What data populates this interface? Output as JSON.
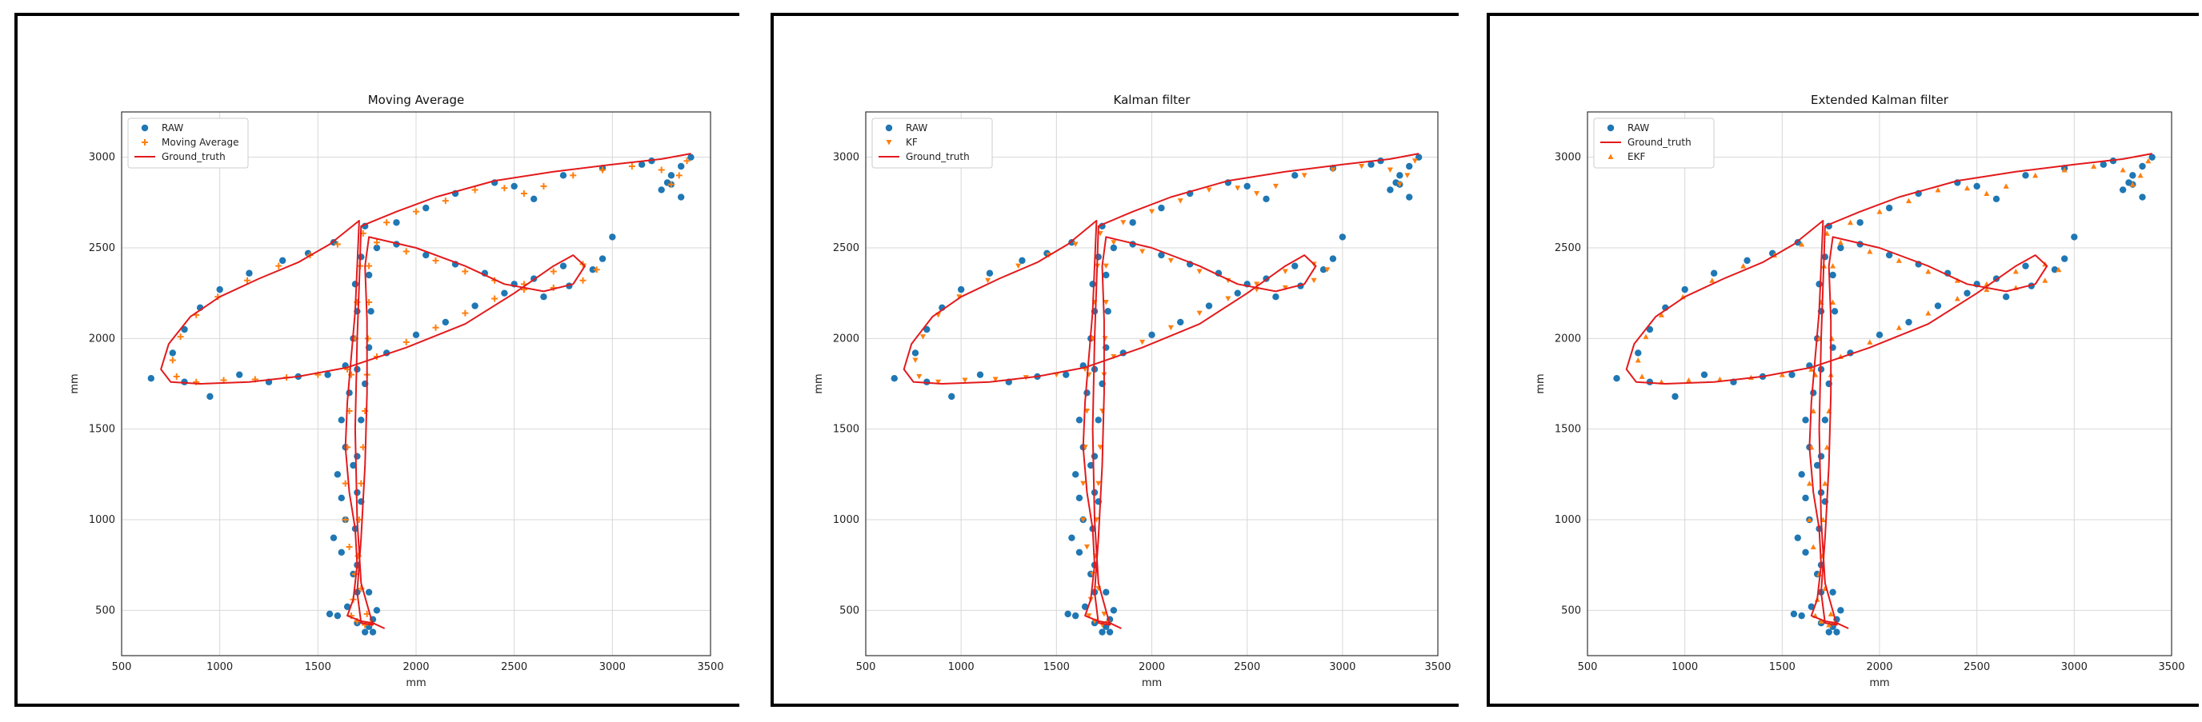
{
  "colors": {
    "raw": "#1f77b4",
    "filtered": "#ff7f0e",
    "truth": "#e31a1c",
    "grid": "#d8d8d8"
  },
  "chart_data": [
    {
      "type": "scatter",
      "title": "Moving Average",
      "xlabel": "mm",
      "ylabel": "mm",
      "xlim": [
        500,
        3500
      ],
      "ylim": [
        250,
        3250
      ],
      "xticks": [
        500,
        1000,
        1500,
        2000,
        2500,
        3000,
        3500
      ],
      "yticks": [
        500,
        1000,
        1500,
        2000,
        2500,
        3000
      ],
      "grid": true,
      "legend_position": "top-left",
      "legend": [
        {
          "label": "RAW",
          "kind": "raw",
          "marker": "dot"
        },
        {
          "label": "Moving Average",
          "kind": "filtered",
          "marker": "plus"
        },
        {
          "label": "Ground_truth",
          "kind": "truth",
          "marker": "line"
        }
      ],
      "filtered_marker": "plus"
    },
    {
      "type": "scatter",
      "title": "Kalman filter",
      "xlabel": "mm",
      "ylabel": "mm",
      "xlim": [
        500,
        3500
      ],
      "ylim": [
        250,
        3250
      ],
      "xticks": [
        500,
        1000,
        1500,
        2000,
        2500,
        3000,
        3500
      ],
      "yticks": [
        500,
        1000,
        1500,
        2000,
        2500,
        3000
      ],
      "grid": true,
      "legend_position": "top-left",
      "legend": [
        {
          "label": "RAW",
          "kind": "raw",
          "marker": "dot"
        },
        {
          "label": "KF",
          "kind": "filtered",
          "marker": "triangle-down"
        },
        {
          "label": "Ground_truth",
          "kind": "truth",
          "marker": "line"
        }
      ],
      "filtered_marker": "triangle-down"
    },
    {
      "type": "scatter",
      "title": "Extended Kalman filter",
      "xlabel": "mm",
      "ylabel": "mm",
      "xlim": [
        500,
        3500
      ],
      "ylim": [
        250,
        3250
      ],
      "xticks": [
        500,
        1000,
        1500,
        2000,
        2500,
        3000,
        3500
      ],
      "yticks": [
        500,
        1000,
        1500,
        2000,
        2500,
        3000
      ],
      "grid": true,
      "legend_position": "top-left",
      "legend": [
        {
          "label": "RAW",
          "kind": "raw",
          "marker": "dot"
        },
        {
          "label": "Ground_truth",
          "kind": "truth",
          "marker": "line"
        },
        {
          "label": "EKF",
          "kind": "filtered",
          "marker": "triangle-up"
        }
      ],
      "filtered_marker": "triangle-up"
    }
  ],
  "trajectory": {
    "ground_truth": [
      [
        1840,
        400
      ],
      [
        1780,
        430
      ],
      [
        1720,
        440
      ],
      [
        1650,
        470
      ],
      [
        1680,
        560
      ],
      [
        1700,
        750
      ],
      [
        1690,
        950
      ],
      [
        1660,
        1150
      ],
      [
        1640,
        1400
      ],
      [
        1650,
        1650
      ],
      [
        1670,
        1900
      ],
      [
        1690,
        2150
      ],
      [
        1700,
        2400
      ],
      [
        1710,
        2650
      ],
      [
        1560,
        2520
      ],
      [
        1400,
        2420
      ],
      [
        1200,
        2330
      ],
      [
        1000,
        2230
      ],
      [
        850,
        2120
      ],
      [
        740,
        1970
      ],
      [
        700,
        1830
      ],
      [
        750,
        1760
      ],
      [
        900,
        1750
      ],
      [
        1150,
        1760
      ],
      [
        1400,
        1790
      ],
      [
        1650,
        1840
      ],
      [
        1950,
        1950
      ],
      [
        2250,
        2080
      ],
      [
        2500,
        2250
      ],
      [
        2700,
        2400
      ],
      [
        2800,
        2460
      ],
      [
        2860,
        2400
      ],
      [
        2800,
        2300
      ],
      [
        2650,
        2260
      ],
      [
        2450,
        2300
      ],
      [
        2250,
        2400
      ],
      [
        2000,
        2500
      ],
      [
        1760,
        2560
      ],
      [
        1740,
        2400
      ],
      [
        1750,
        2100
      ],
      [
        1750,
        1700
      ],
      [
        1740,
        1300
      ],
      [
        1720,
        900
      ],
      [
        1700,
        600
      ],
      [
        1720,
        430
      ],
      [
        1780,
        420
      ],
      [
        1720,
        650
      ],
      [
        1700,
        1000
      ],
      [
        1690,
        1500
      ],
      [
        1700,
        2000
      ],
      [
        1710,
        2300
      ],
      [
        1720,
        2620
      ],
      [
        1900,
        2700
      ],
      [
        2100,
        2780
      ],
      [
        2400,
        2870
      ],
      [
        2700,
        2920
      ],
      [
        3000,
        2960
      ],
      [
        3250,
        2990
      ],
      [
        3400,
        3020
      ]
    ],
    "raw": [
      [
        1780,
        450
      ],
      [
        1760,
        410
      ],
      [
        1740,
        380
      ],
      [
        1700,
        430
      ],
      [
        1600,
        470
      ],
      [
        1560,
        480
      ],
      [
        1650,
        520
      ],
      [
        1700,
        600
      ],
      [
        1680,
        700
      ],
      [
        1620,
        820
      ],
      [
        1580,
        900
      ],
      [
        1640,
        1000
      ],
      [
        1620,
        1120
      ],
      [
        1600,
        1250
      ],
      [
        1640,
        1400
      ],
      [
        1620,
        1550
      ],
      [
        1660,
        1700
      ],
      [
        1640,
        1850
      ],
      [
        1680,
        2000
      ],
      [
        1700,
        2150
      ],
      [
        1690,
        2300
      ],
      [
        1720,
        2450
      ],
      [
        1740,
        2620
      ],
      [
        1580,
        2530
      ],
      [
        1450,
        2470
      ],
      [
        1320,
        2430
      ],
      [
        1150,
        2360
      ],
      [
        1000,
        2270
      ],
      [
        900,
        2170
      ],
      [
        820,
        2050
      ],
      [
        760,
        1920
      ],
      [
        650,
        1780
      ],
      [
        820,
        1760
      ],
      [
        950,
        1680
      ],
      [
        1100,
        1800
      ],
      [
        1250,
        1760
      ],
      [
        1400,
        1790
      ],
      [
        1550,
        1800
      ],
      [
        1700,
        1830
      ],
      [
        1850,
        1920
      ],
      [
        2000,
        2020
      ],
      [
        2150,
        2090
      ],
      [
        2300,
        2180
      ],
      [
        2450,
        2250
      ],
      [
        2600,
        2330
      ],
      [
        2750,
        2400
      ],
      [
        2950,
        2440
      ],
      [
        3000,
        2560
      ],
      [
        2900,
        2380
      ],
      [
        2780,
        2290
      ],
      [
        2650,
        2230
      ],
      [
        2500,
        2300
      ],
      [
        2350,
        2360
      ],
      [
        2200,
        2410
      ],
      [
        2050,
        2460
      ],
      [
        1900,
        2520
      ],
      [
        1800,
        2500
      ],
      [
        1760,
        2350
      ],
      [
        1770,
        2150
      ],
      [
        1760,
        1950
      ],
      [
        1740,
        1750
      ],
      [
        1720,
        1550
      ],
      [
        1700,
        1350
      ],
      [
        1700,
        1150
      ],
      [
        1690,
        950
      ],
      [
        1700,
        750
      ],
      [
        1760,
        600
      ],
      [
        1800,
        500
      ],
      [
        1780,
        380
      ],
      [
        1720,
        1100
      ],
      [
        1680,
        1300
      ],
      [
        1900,
        2640
      ],
      [
        2050,
        2720
      ],
      [
        2200,
        2800
      ],
      [
        2400,
        2860
      ],
      [
        2500,
        2840
      ],
      [
        2600,
        2770
      ],
      [
        2750,
        2900
      ],
      [
        2950,
        2940
      ],
      [
        3150,
        2960
      ],
      [
        3300,
        2900
      ],
      [
        3250,
        2820
      ],
      [
        3300,
        2850
      ],
      [
        3350,
        2950
      ],
      [
        3400,
        3000
      ],
      [
        3200,
        2980
      ],
      [
        3350,
        2780
      ],
      [
        3280,
        2860
      ]
    ],
    "filtered": [
      [
        1770,
        430
      ],
      [
        1740,
        420
      ],
      [
        1700,
        440
      ],
      [
        1670,
        470
      ],
      [
        1680,
        560
      ],
      [
        1690,
        700
      ],
      [
        1660,
        850
      ],
      [
        1640,
        1000
      ],
      [
        1640,
        1200
      ],
      [
        1650,
        1400
      ],
      [
        1660,
        1600
      ],
      [
        1670,
        1800
      ],
      [
        1690,
        2000
      ],
      [
        1700,
        2200
      ],
      [
        1715,
        2400
      ],
      [
        1730,
        2580
      ],
      [
        1600,
        2520
      ],
      [
        1460,
        2460
      ],
      [
        1300,
        2400
      ],
      [
        1140,
        2320
      ],
      [
        990,
        2230
      ],
      [
        880,
        2130
      ],
      [
        800,
        2010
      ],
      [
        760,
        1880
      ],
      [
        780,
        1790
      ],
      [
        880,
        1760
      ],
      [
        1020,
        1770
      ],
      [
        1180,
        1775
      ],
      [
        1340,
        1785
      ],
      [
        1500,
        1800
      ],
      [
        1650,
        1830
      ],
      [
        1800,
        1900
      ],
      [
        1950,
        1980
      ],
      [
        2100,
        2060
      ],
      [
        2250,
        2140
      ],
      [
        2400,
        2220
      ],
      [
        2550,
        2300
      ],
      [
        2700,
        2370
      ],
      [
        2850,
        2410
      ],
      [
        2920,
        2380
      ],
      [
        2850,
        2320
      ],
      [
        2700,
        2280
      ],
      [
        2550,
        2270
      ],
      [
        2400,
        2320
      ],
      [
        2250,
        2370
      ],
      [
        2100,
        2430
      ],
      [
        1950,
        2480
      ],
      [
        1800,
        2530
      ],
      [
        1760,
        2400
      ],
      [
        1760,
        2200
      ],
      [
        1755,
        2000
      ],
      [
        1750,
        1800
      ],
      [
        1740,
        1600
      ],
      [
        1730,
        1400
      ],
      [
        1720,
        1200
      ],
      [
        1710,
        1000
      ],
      [
        1705,
        800
      ],
      [
        1720,
        620
      ],
      [
        1750,
        480
      ],
      [
        1850,
        2640
      ],
      [
        2000,
        2700
      ],
      [
        2150,
        2760
      ],
      [
        2300,
        2820
      ],
      [
        2450,
        2830
      ],
      [
        2550,
        2800
      ],
      [
        2650,
        2840
      ],
      [
        2800,
        2900
      ],
      [
        2950,
        2930
      ],
      [
        3100,
        2950
      ],
      [
        3250,
        2930
      ],
      [
        3300,
        2850
      ],
      [
        3340,
        2900
      ],
      [
        3380,
        2980
      ]
    ]
  }
}
